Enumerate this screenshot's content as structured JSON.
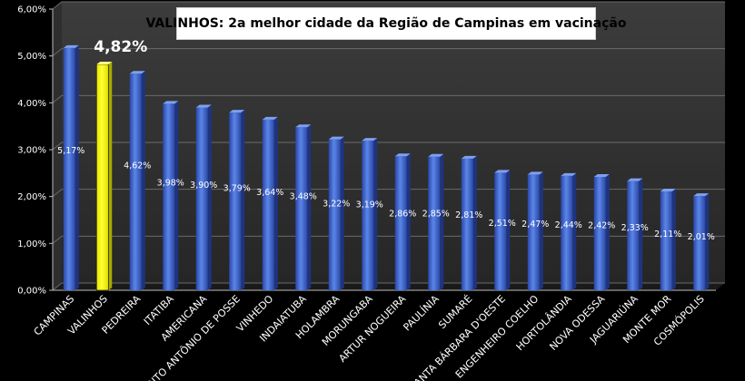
{
  "chart_data": {
    "type": "bar",
    "title": "VALINHOS: 2a melhor cidade da Região de Campinas em vacinação",
    "xlabel": "",
    "ylabel": "",
    "ylim": [
      0,
      6
    ],
    "y_ticks": [
      "0,00%",
      "1,00%",
      "2,00%",
      "3,00%",
      "4,00%",
      "5,00%",
      "6,00%"
    ],
    "grid": true,
    "legend": "none",
    "bar_color": "#3a5fcd",
    "highlight_color": "#ffff00",
    "highlight_label": "4,82%",
    "categories": [
      "CAMPINAS",
      "VALINHOS",
      "PEDREIRA",
      "ITATIBA",
      "AMERICANA",
      "SANTO ANTÔNIO DE POSSE",
      "VINHEDO",
      "INDAIATUBA",
      "HOLAMBRA",
      "MORUNGABA",
      "ARTUR NOGUEIRA",
      "PAULÍNIA",
      "SUMARÉ",
      "SANTA BÁRBARA D'OESTE",
      "ENGENHEIRO COELHO",
      "HORTOLÂNDIA",
      "NOVA ODESSA",
      "JAGUARIÚNA",
      "MONTE MOR",
      "COSMÓPOLIS"
    ],
    "values": [
      5.17,
      4.82,
      4.62,
      3.98,
      3.9,
      3.79,
      3.64,
      3.48,
      3.22,
      3.19,
      2.86,
      2.85,
      2.81,
      2.51,
      2.47,
      2.44,
      2.42,
      2.33,
      2.11,
      2.01
    ],
    "labels": [
      "5,17%",
      "",
      "4,62%",
      "3,98%",
      "3,90%",
      "3,79%",
      "3,64%",
      "3,48%",
      "3,22%",
      "3,19%",
      "2,86%",
      "2,85%",
      "2,81%",
      "2,51%",
      "2,47%",
      "2,44%",
      "2,42%",
      "2,33%",
      "2,11%",
      "2,01%"
    ],
    "highlight_index": 1
  }
}
